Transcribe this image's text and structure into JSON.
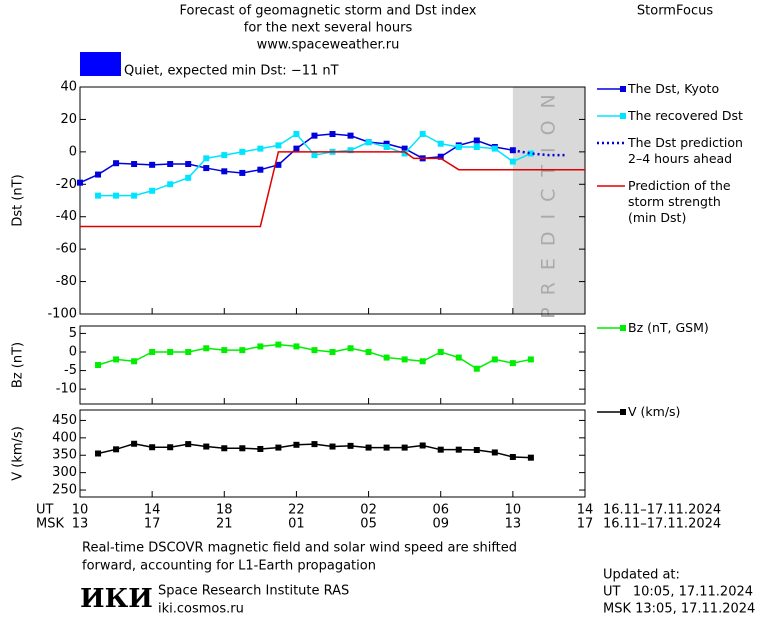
{
  "header": {
    "title": [
      "Forecast of geomagnetic storm and Dst index",
      "for the next several hours",
      "www.spaceweather.ru"
    ],
    "brand": "StormFocus"
  },
  "status": {
    "color": "#0000ff",
    "text": "Quiet, expected min Dst: −11 nT"
  },
  "time_axis": {
    "ut_label": "UT",
    "msk_label": "MSK",
    "msk_ticks": [
      "13",
      "17",
      "21",
      "01",
      "05",
      "09",
      "13",
      "17"
    ],
    "ut_range": "16.11–17.11.2024",
    "msk_range": "16.11–17.11.2024"
  },
  "chart_data": [
    {
      "type": "line",
      "ylabel": "Dst (nT)",
      "xlim": [
        0,
        28
      ],
      "ylim": [
        -100,
        40
      ],
      "yticks": [
        40,
        20,
        0,
        -20,
        -40,
        -60,
        -80,
        -100
      ],
      "shade": {
        "x": [
          24,
          28
        ],
        "label": "PREDICTION",
        "color": "#d9d9d9"
      },
      "series": [
        {
          "name": "The Dst, Kyoto",
          "color": "#0000dd",
          "marker": "square",
          "x": [
            0,
            1,
            2,
            3,
            4,
            5,
            6,
            7,
            8,
            9,
            10,
            11,
            12,
            13,
            14,
            15,
            16,
            17,
            18,
            19,
            20,
            21,
            22,
            23,
            24
          ],
          "values": [
            -19,
            -14,
            -7,
            -7.5,
            -8,
            -7.5,
            -7.5,
            -10,
            -12,
            -13,
            -11,
            -8,
            2,
            10,
            11,
            10,
            6,
            5,
            2,
            -4,
            -3,
            4,
            7,
            3,
            1
          ]
        },
        {
          "name": "The recovered Dst",
          "color": "#00e5ff",
          "marker": "square",
          "x": [
            1,
            2,
            3,
            4,
            5,
            6,
            7,
            8,
            9,
            10,
            11,
            12,
            13,
            14,
            15,
            16,
            17,
            18,
            19,
            20,
            21,
            22,
            23,
            24,
            25
          ],
          "values": [
            -27,
            -27,
            -27,
            -24,
            -20,
            -16,
            -4,
            -2,
            0,
            2,
            4,
            11,
            -2,
            0,
            1,
            6,
            3,
            -1,
            11,
            5,
            3,
            3,
            2,
            -6,
            -1
          ]
        },
        {
          "name": "The Dst prediction\n2–4 hours ahead",
          "color": "#0000dd",
          "dash": "dotted",
          "x": [
            24,
            25,
            26,
            27
          ],
          "values": [
            1,
            -1,
            -2,
            -2
          ]
        },
        {
          "name": "Prediction of the\nstorm strength\n(min Dst)",
          "color": "#e00000",
          "x": [
            0,
            10,
            11,
            18,
            18.5,
            20,
            21,
            28
          ],
          "values": [
            -46,
            -46,
            0,
            0,
            -4,
            -4,
            -11,
            -11
          ]
        }
      ]
    },
    {
      "type": "line",
      "ylabel": "Bz (nT)",
      "xlim": [
        0,
        28
      ],
      "ylim": [
        -14,
        7
      ],
      "yticks": [
        5,
        0,
        -5,
        -10
      ],
      "series": [
        {
          "name": "Bz (nT, GSM)",
          "color": "#00ee00",
          "marker": "square",
          "x": [
            1,
            2,
            3,
            4,
            5,
            6,
            7,
            8,
            9,
            10,
            11,
            12,
            13,
            14,
            15,
            16,
            17,
            18,
            19,
            20,
            21,
            22,
            23,
            24,
            25
          ],
          "values": [
            -3.5,
            -2,
            -2.5,
            0,
            0,
            0,
            1,
            0.5,
            0.5,
            1.5,
            2,
            1.5,
            0.5,
            0,
            1,
            0,
            -1.5,
            -2,
            -2.5,
            0,
            -1.5,
            -4.5,
            -2,
            -3,
            -2
          ]
        }
      ]
    },
    {
      "type": "line",
      "ylabel": "V (km/s)",
      "xlim": [
        0,
        28
      ],
      "ylim": [
        230,
        480
      ],
      "yticks": [
        450,
        400,
        350,
        300,
        250
      ],
      "xticks": [
        {
          "value": 0,
          "label": "10"
        },
        {
          "value": 4,
          "label": "14"
        },
        {
          "value": 8,
          "label": "18"
        },
        {
          "value": 12,
          "label": "22"
        },
        {
          "value": 16,
          "label": "02"
        },
        {
          "value": 20,
          "label": "06"
        },
        {
          "value": 24,
          "label": "10"
        },
        {
          "value": 28,
          "label": "14"
        }
      ],
      "series": [
        {
          "name": "V (km/s)",
          "color": "#000000",
          "marker": "square",
          "x": [
            1,
            2,
            3,
            4,
            5,
            6,
            7,
            8,
            9,
            10,
            11,
            12,
            13,
            14,
            15,
            16,
            17,
            18,
            19,
            20,
            21,
            22,
            23,
            24,
            25
          ],
          "values": [
            355,
            367,
            383,
            373,
            373,
            382,
            375,
            370,
            370,
            368,
            372,
            380,
            382,
            375,
            377,
            372,
            372,
            372,
            378,
            366,
            366,
            365,
            358,
            345,
            343
          ]
        }
      ]
    }
  ],
  "footer": {
    "note": [
      "Real-time DSCOVR magnetic field and solar wind speed are shifted",
      "forward, accounting for L1-Earth propagation"
    ],
    "logo": "ИКИ",
    "institute": "Space Research Institute RAS",
    "site": "iki.cosmos.ru",
    "updated": [
      "Updated at:",
      "UT   10:05, 17.11.2024",
      "MSK 13:05, 17.11.2024"
    ]
  }
}
